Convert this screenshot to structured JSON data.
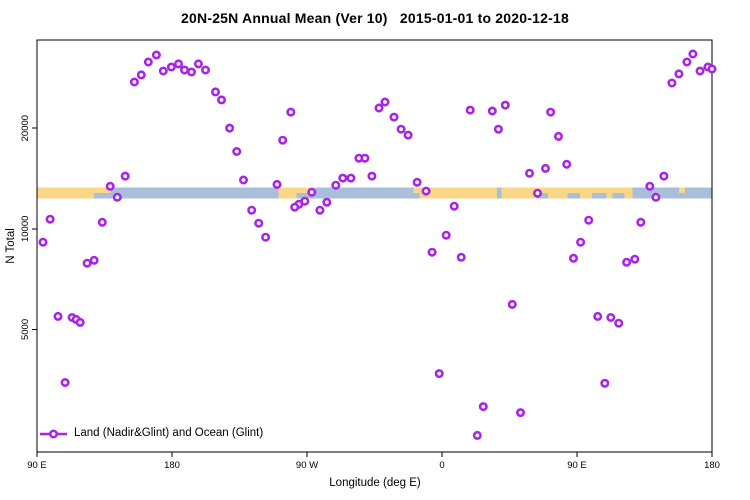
{
  "chart_data": {
    "type": "scatter",
    "title": "20N-25N Annual Mean (Ver 10)   2015-01-01 to 2020-12-18",
    "xlabel": "Longitude (deg E)",
    "ylabel": "N Total",
    "legend": {
      "label": "Land (Nadir&Glint) and Ocean (Glint)",
      "marker": "open-circle-on-line",
      "position": "bottom-left-inside"
    },
    "colors": {
      "marker": "#A823E8",
      "land": "#FAD687",
      "ocean": "#A9BEDB",
      "axis": "#000000",
      "background": "#FFFFFF"
    },
    "x_axis": {
      "unit": "deg E",
      "xlim_deg": [
        90,
        540
      ],
      "wrap_note": "longitude axis wraps: 90E to 180 to 90W to 0 to 90E to 180",
      "ticks": [
        {
          "deg": 90,
          "label": "90 E"
        },
        {
          "deg": 180,
          "label": "180"
        },
        {
          "deg": 270,
          "label": "90 W"
        },
        {
          "deg": 360,
          "label": "0"
        },
        {
          "deg": 450,
          "label": "90 E"
        },
        {
          "deg": 540,
          "label": "180"
        }
      ]
    },
    "y_axis": {
      "scale": "log10",
      "ylim": [
        2150,
        36700
      ],
      "ticks": [
        {
          "value": 20000,
          "label": "20000"
        },
        {
          "value": 10000,
          "label": "10000"
        },
        {
          "value": 5000,
          "label": "5000"
        }
      ]
    },
    "map_strip": {
      "description": "land/ocean mask band for 20N-25N drawn across the plot",
      "value_top": 13280,
      "value_bottom": 12320,
      "segments": [
        {
          "from": 90,
          "to": 540,
          "type": "ocean",
          "part": "full"
        },
        {
          "from": 90,
          "to": 128,
          "type": "land",
          "part": "full"
        },
        {
          "from": 128,
          "to": 139,
          "type": "land",
          "part": "top"
        },
        {
          "from": 251,
          "to": 263,
          "type": "land",
          "part": "full"
        },
        {
          "from": 263,
          "to": 276,
          "type": "land",
          "part": "top"
        },
        {
          "from": 341,
          "to": 345,
          "type": "land",
          "part": "top"
        },
        {
          "from": 345,
          "to": 487,
          "type": "land",
          "part": "full"
        },
        {
          "from": 396.5,
          "to": 399.5,
          "type": "ocean",
          "part": "full"
        },
        {
          "from": 422.5,
          "to": 430.5,
          "type": "ocean",
          "part": "bottom"
        },
        {
          "from": 443.5,
          "to": 452,
          "type": "ocean",
          "part": "bottom"
        },
        {
          "from": 460,
          "to": 469.5,
          "type": "ocean",
          "part": "bottom"
        },
        {
          "from": 473.5,
          "to": 481.5,
          "type": "ocean",
          "part": "bottom"
        },
        {
          "from": 518,
          "to": 522,
          "type": "land",
          "part": "top"
        }
      ]
    },
    "points": [
      [
        164.2,
        31540
      ],
      [
        169.6,
        33100
      ],
      [
        154.9,
        27490
      ],
      [
        159.5,
        28850
      ],
      [
        174.2,
        29650
      ],
      [
        179.6,
        30480
      ],
      [
        184.3,
        31120
      ],
      [
        188.3,
        29860
      ],
      [
        193,
        29450
      ],
      [
        197.6,
        31120
      ],
      [
        202.3,
        29860
      ],
      [
        209,
        25670
      ],
      [
        213,
        24290
      ],
      [
        218.4,
        20000
      ],
      [
        223.1,
        17030
      ],
      [
        227.7,
        13990
      ],
      [
        233.1,
        11370
      ],
      [
        237.8,
        10390
      ],
      [
        242.4,
        9440
      ],
      [
        148.8,
        14380
      ],
      [
        138.8,
        13400
      ],
      [
        143.5,
        12420
      ],
      [
        98.7,
        10680
      ],
      [
        133.5,
        10460
      ],
      [
        94,
        9120
      ],
      [
        250,
        13580
      ],
      [
        259.2,
        22340
      ],
      [
        253.8,
        18410
      ],
      [
        318,
        22970
      ],
      [
        322,
        23940
      ],
      [
        328,
        21580
      ],
      [
        332.7,
        19860
      ],
      [
        337.4,
        19060
      ],
      [
        304.6,
        16260
      ],
      [
        308.6,
        16260
      ],
      [
        313.3,
        14380
      ],
      [
        299.3,
        14180
      ],
      [
        293.9,
        14180
      ],
      [
        289.2,
        13500
      ],
      [
        273.2,
        12870
      ],
      [
        283.2,
        12000
      ],
      [
        278.6,
        11370
      ],
      [
        268.5,
        12090
      ],
      [
        264.5,
        11840
      ],
      [
        261.8,
        11600
      ],
      [
        343.4,
        13770
      ],
      [
        349.4,
        12960
      ],
      [
        368.1,
        11680
      ],
      [
        378.8,
        22650
      ],
      [
        393.5,
        22500
      ],
      [
        402.2,
        23440
      ],
      [
        397.6,
        19860
      ],
      [
        362.8,
        9570
      ],
      [
        527.3,
        33330
      ],
      [
        523.3,
        31540
      ],
      [
        532,
        29650
      ],
      [
        537.3,
        30480
      ],
      [
        540,
        30060
      ],
      [
        517.9,
        29050
      ],
      [
        513.3,
        27300
      ],
      [
        432.4,
        22340
      ],
      [
        437.7,
        18900
      ],
      [
        443.1,
        15590
      ],
      [
        429,
        15160
      ],
      [
        418.3,
        14650
      ],
      [
        507.9,
        14380
      ],
      [
        498.5,
        13400
      ],
      [
        502.6,
        12420
      ],
      [
        423.7,
        12780
      ],
      [
        457.8,
        10610
      ],
      [
        492.5,
        10460
      ],
      [
        452.4,
        9120
      ],
      [
        123.4,
        7890
      ],
      [
        128.1,
        8050
      ],
      [
        104,
        5470
      ],
      [
        113.4,
        5430
      ],
      [
        116.1,
        5360
      ],
      [
        118.8,
        5250
      ],
      [
        108.7,
        3470
      ],
      [
        353.4,
        8510
      ],
      [
        372.8,
        8220
      ],
      [
        406.9,
        5940
      ],
      [
        358.1,
        3690
      ],
      [
        387.5,
        2940
      ],
      [
        383.5,
        2410
      ],
      [
        412.3,
        2820
      ],
      [
        447.7,
        8160
      ],
      [
        483.1,
        7940
      ],
      [
        488.5,
        8110
      ],
      [
        463.8,
        5470
      ],
      [
        472.5,
        5430
      ],
      [
        477.8,
        5220
      ],
      [
        468.5,
        3450
      ]
    ]
  }
}
